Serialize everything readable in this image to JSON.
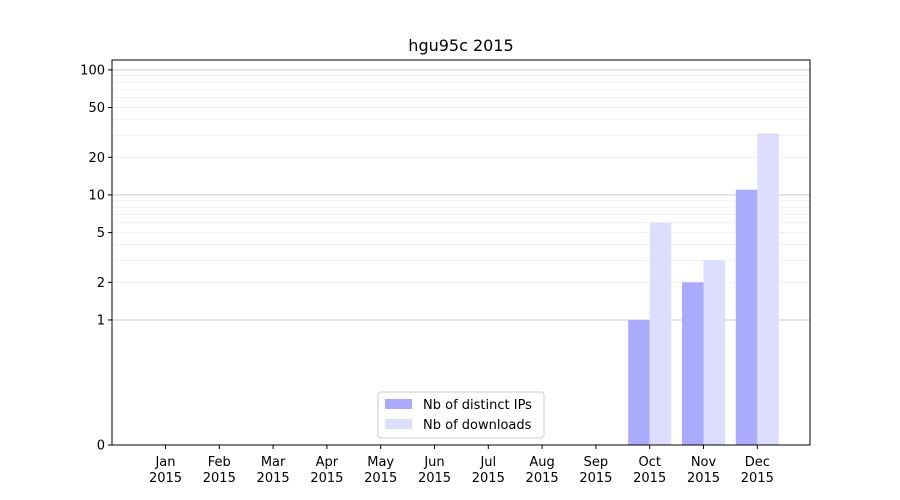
{
  "chart_data": {
    "type": "bar",
    "title": "hgu95c 2015",
    "xlabel": "",
    "ylabel": "",
    "yscale": "symlog",
    "ylim": [
      0,
      120
    ],
    "yticks": [
      0,
      1,
      2,
      5,
      10,
      20,
      50,
      100
    ],
    "categories": [
      [
        "Jan",
        "2015"
      ],
      [
        "Feb",
        "2015"
      ],
      [
        "Mar",
        "2015"
      ],
      [
        "Apr",
        "2015"
      ],
      [
        "May",
        "2015"
      ],
      [
        "Jun",
        "2015"
      ],
      [
        "Jul",
        "2015"
      ],
      [
        "Aug",
        "2015"
      ],
      [
        "Sep",
        "2015"
      ],
      [
        "Oct",
        "2015"
      ],
      [
        "Nov",
        "2015"
      ],
      [
        "Dec",
        "2015"
      ]
    ],
    "series": [
      {
        "name": "Nb of distinct IPs",
        "color": "#aaaaff",
        "values": [
          0,
          0,
          0,
          0,
          0,
          0,
          0,
          0,
          0,
          1,
          2,
          11
        ]
      },
      {
        "name": "Nb of downloads",
        "color": "#ddddff",
        "values": [
          0,
          0,
          0,
          0,
          0,
          0,
          0,
          0,
          0,
          6,
          3,
          31
        ]
      }
    ],
    "grid": "horizontal",
    "legend": "lower-center"
  }
}
